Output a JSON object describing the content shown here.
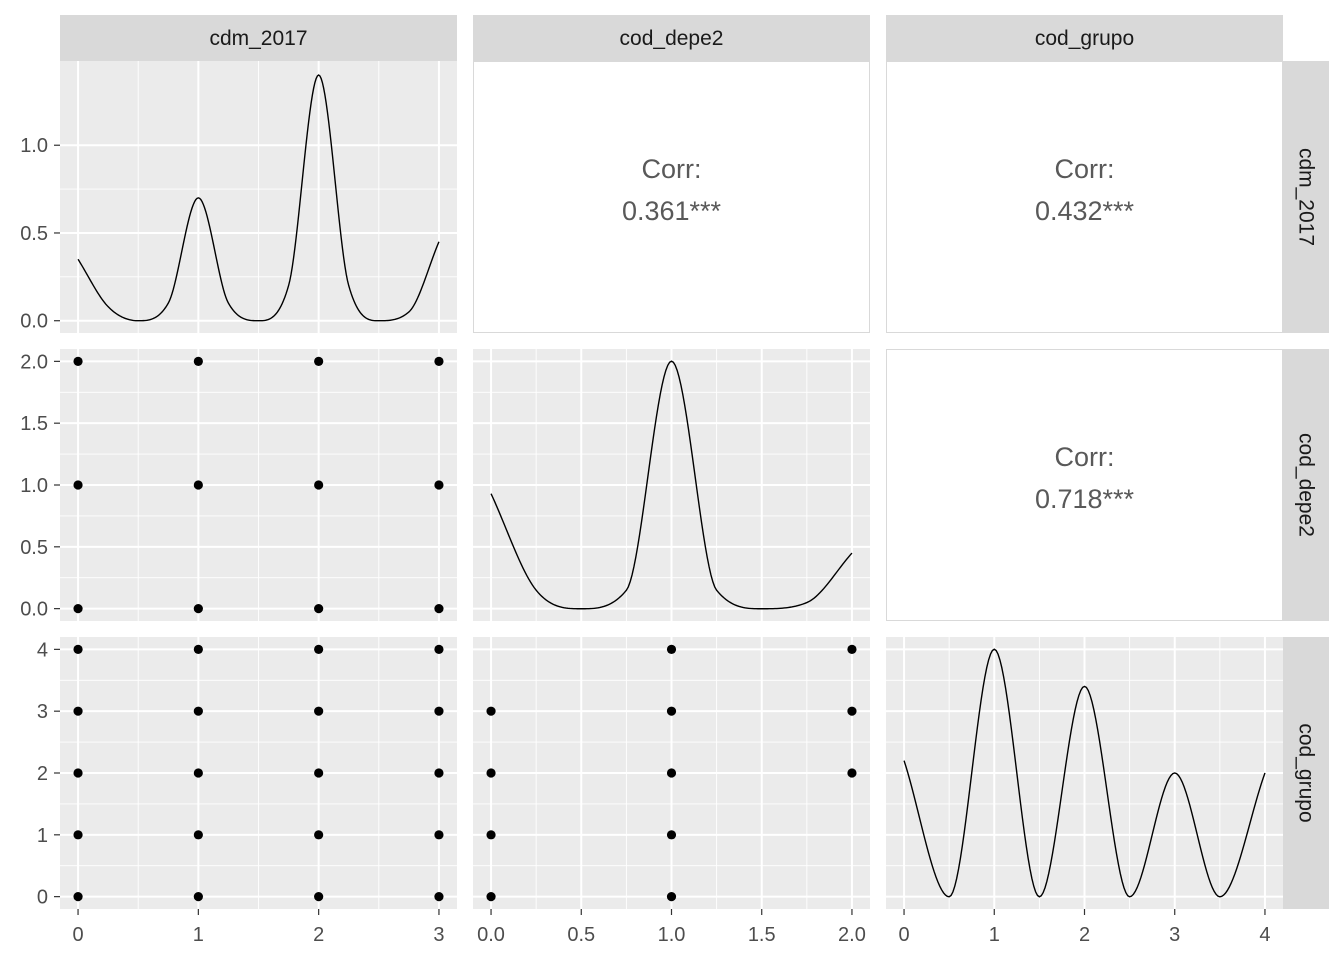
{
  "colors": {
    "panel_bg": "#ebebeb",
    "grid_major": "#ffffff",
    "strip_bg": "#d9d9d9",
    "strip_text": "#1a1a1a",
    "tick_text": "#4d4d4d",
    "corr_text": "#595959",
    "mark": "#000000"
  },
  "chart_data": {
    "type": "pairs",
    "variables": [
      "cdm_2017",
      "cod_depe2",
      "cod_grupo"
    ],
    "column_strips": [
      "cdm_2017",
      "cod_depe2",
      "cod_grupo"
    ],
    "row_strips": [
      "cdm_2017",
      "cod_depe2",
      "cod_grupo"
    ],
    "x_axes": [
      {
        "variable": "cdm_2017",
        "range": [
          -0.15,
          3.15
        ],
        "ticks": [
          0,
          1,
          2,
          3
        ],
        "tick_labels": [
          "0",
          "1",
          "2",
          "3"
        ]
      },
      {
        "variable": "cod_depe2",
        "range": [
          -0.1,
          2.1
        ],
        "ticks": [
          0,
          0.5,
          1,
          1.5,
          2
        ],
        "tick_labels": [
          "0.0",
          "0.5",
          "1.0",
          "1.5",
          "2.0"
        ]
      },
      {
        "variable": "cod_grupo",
        "range": [
          -0.2,
          4.2
        ],
        "ticks": [
          0,
          1,
          2,
          3,
          4
        ],
        "tick_labels": [
          "0",
          "1",
          "2",
          "3",
          "4"
        ]
      }
    ],
    "y_axes": [
      {
        "variable": "cdm_2017 (density)",
        "range": [
          -0.07,
          1.48
        ],
        "ticks": [
          0,
          0.5,
          1.0
        ],
        "tick_labels": [
          "0.0",
          "0.5",
          "1.0"
        ]
      },
      {
        "variable": "cod_depe2",
        "range": [
          -0.1,
          2.1
        ],
        "ticks": [
          0,
          0.5,
          1,
          1.5,
          2
        ],
        "tick_labels": [
          "0.0",
          "0.5",
          "1.0",
          "1.5",
          "2.0"
        ]
      },
      {
        "variable": "cod_grupo",
        "range": [
          -0.2,
          4.2
        ],
        "ticks": [
          0,
          1,
          2,
          3,
          4
        ],
        "tick_labels": [
          "0",
          "1",
          "2",
          "3",
          "4"
        ]
      }
    ],
    "panels": [
      {
        "row": 0,
        "col": 0,
        "type": "density",
        "variable": "cdm_2017",
        "x": [
          0,
          0.25,
          0.5,
          0.75,
          1,
          1.25,
          1.5,
          1.75,
          2,
          2.25,
          2.5,
          2.75,
          3
        ],
        "y": [
          0.35,
          0.08,
          0.0,
          0.1,
          0.7,
          0.1,
          0.0,
          0.2,
          1.4,
          0.2,
          0.0,
          0.05,
          0.45
        ]
      },
      {
        "row": 0,
        "col": 1,
        "type": "correlation",
        "label": "Corr:",
        "value": "0.361***"
      },
      {
        "row": 0,
        "col": 2,
        "type": "correlation",
        "label": "Corr:",
        "value": "0.432***"
      },
      {
        "row": 1,
        "col": 0,
        "type": "scatter",
        "points": [
          [
            0,
            0
          ],
          [
            0,
            1
          ],
          [
            0,
            2
          ],
          [
            1,
            0
          ],
          [
            1,
            1
          ],
          [
            1,
            2
          ],
          [
            2,
            0
          ],
          [
            2,
            1
          ],
          [
            2,
            2
          ],
          [
            3,
            0
          ],
          [
            3,
            1
          ],
          [
            3,
            2
          ]
        ]
      },
      {
        "row": 1,
        "col": 1,
        "type": "density",
        "variable": "cod_depe2",
        "x": [
          0,
          0.25,
          0.5,
          0.75,
          1,
          1.25,
          1.5,
          1.75,
          2
        ],
        "y": [
          0.93,
          0.15,
          0.0,
          0.15,
          2.0,
          0.15,
          0.0,
          0.05,
          0.45
        ]
      },
      {
        "row": 1,
        "col": 2,
        "type": "correlation",
        "label": "Corr:",
        "value": "0.718***"
      },
      {
        "row": 2,
        "col": 0,
        "type": "scatter",
        "points": [
          [
            0,
            0
          ],
          [
            0,
            1
          ],
          [
            0,
            2
          ],
          [
            0,
            3
          ],
          [
            0,
            4
          ],
          [
            1,
            0
          ],
          [
            1,
            1
          ],
          [
            1,
            2
          ],
          [
            1,
            3
          ],
          [
            1,
            4
          ],
          [
            2,
            0
          ],
          [
            2,
            1
          ],
          [
            2,
            2
          ],
          [
            2,
            3
          ],
          [
            2,
            4
          ],
          [
            3,
            0
          ],
          [
            3,
            1
          ],
          [
            3,
            2
          ],
          [
            3,
            3
          ],
          [
            3,
            4
          ]
        ]
      },
      {
        "row": 2,
        "col": 1,
        "type": "scatter",
        "points": [
          [
            0,
            0
          ],
          [
            0,
            1
          ],
          [
            0,
            2
          ],
          [
            0,
            3
          ],
          [
            1,
            0
          ],
          [
            1,
            1
          ],
          [
            1,
            2
          ],
          [
            1,
            3
          ],
          [
            1,
            4
          ],
          [
            2,
            2
          ],
          [
            2,
            3
          ],
          [
            2,
            4
          ]
        ]
      },
      {
        "row": 2,
        "col": 2,
        "type": "density",
        "variable": "cod_grupo",
        "x": [
          0,
          0.5,
          1,
          1.5,
          2,
          2.5,
          3,
          3.5,
          4
        ],
        "y": [
          0.55,
          0.0,
          1.0,
          0.0,
          0.85,
          0.0,
          0.5,
          0.0,
          0.5
        ]
      }
    ]
  }
}
